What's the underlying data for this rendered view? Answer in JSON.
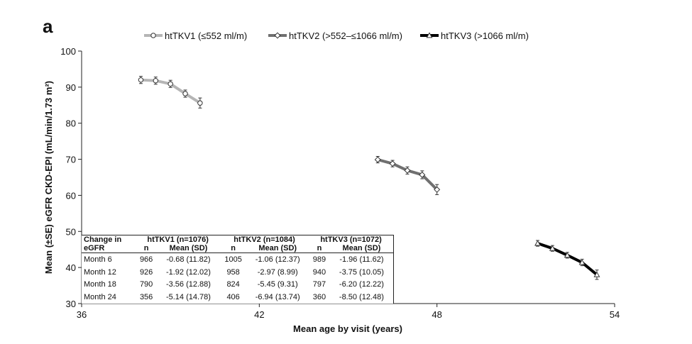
{
  "panel_label": "a",
  "chart_data": {
    "type": "line",
    "title": "",
    "xlabel": "Mean age by visit (years)",
    "ylabel": "Mean (±SE) eGFR CKD-EPI (mL/min/1.73 m²)",
    "xlim": [
      36,
      54
    ],
    "ylim": [
      30,
      100
    ],
    "xticks": [
      36,
      42,
      48,
      54
    ],
    "yticks": [
      30,
      40,
      50,
      60,
      70,
      80,
      90,
      100
    ],
    "error_bars": "±SE",
    "legend_position": "top",
    "series": [
      {
        "name": "htTKV1 (≤552 ml/m)",
        "color": "#b5b5b5",
        "marker": "circle",
        "x": [
          38.0,
          38.5,
          39.0,
          39.5,
          40.0
        ],
        "y": [
          92.0,
          91.8,
          90.9,
          88.2,
          85.6
        ],
        "se": [
          1.0,
          1.0,
          1.0,
          1.0,
          1.4
        ]
      },
      {
        "name": "htTKV2 (>552–≤1066 ml/m)",
        "color": "#707070",
        "marker": "diamond",
        "x": [
          46.0,
          46.5,
          47.0,
          47.5,
          48.0
        ],
        "y": [
          69.9,
          68.8,
          66.9,
          65.7,
          61.6
        ],
        "se": [
          0.9,
          0.9,
          1.0,
          1.1,
          1.4
        ]
      },
      {
        "name": "htTKV3 (>1066 ml/m)",
        "color": "#000000",
        "marker": "triangle",
        "x": [
          51.4,
          51.9,
          52.4,
          52.9,
          53.4
        ],
        "y": [
          46.7,
          45.3,
          43.4,
          41.4,
          38.0
        ],
        "se": [
          0.8,
          0.8,
          0.8,
          0.9,
          1.3
        ]
      }
    ],
    "table": {
      "header_label_1": "Change in",
      "header_label_2": "eGFR",
      "groups": [
        "htTKV1 (n=1076)",
        "htTKV2 (n=1084)",
        "htTKV3 (n=1072)"
      ],
      "subheaders": [
        "n",
        "Mean (SD)"
      ],
      "rows": [
        {
          "label": "Month 6",
          "cells": [
            "966",
            "-0.68 (11.82)",
            "1005",
            "-1.06 (12.37)",
            "989",
            "-1.96 (11.62)"
          ]
        },
        {
          "label": "Month 12",
          "cells": [
            "926",
            "-1.92 (12.02)",
            "958",
            "-2.97 (8.99)",
            "940",
            "-3.75 (10.05)"
          ]
        },
        {
          "label": "Month 18",
          "cells": [
            "790",
            "-3.56 (12.88)",
            "824",
            "-5.45 (9.31)",
            "797",
            "-6.20 (12.22)"
          ]
        },
        {
          "label": "Month 24",
          "cells": [
            "356",
            "-5.14 (14.78)",
            "406",
            "-6.94 (13.74)",
            "360",
            "-8.50 (12.48)"
          ]
        }
      ]
    }
  }
}
